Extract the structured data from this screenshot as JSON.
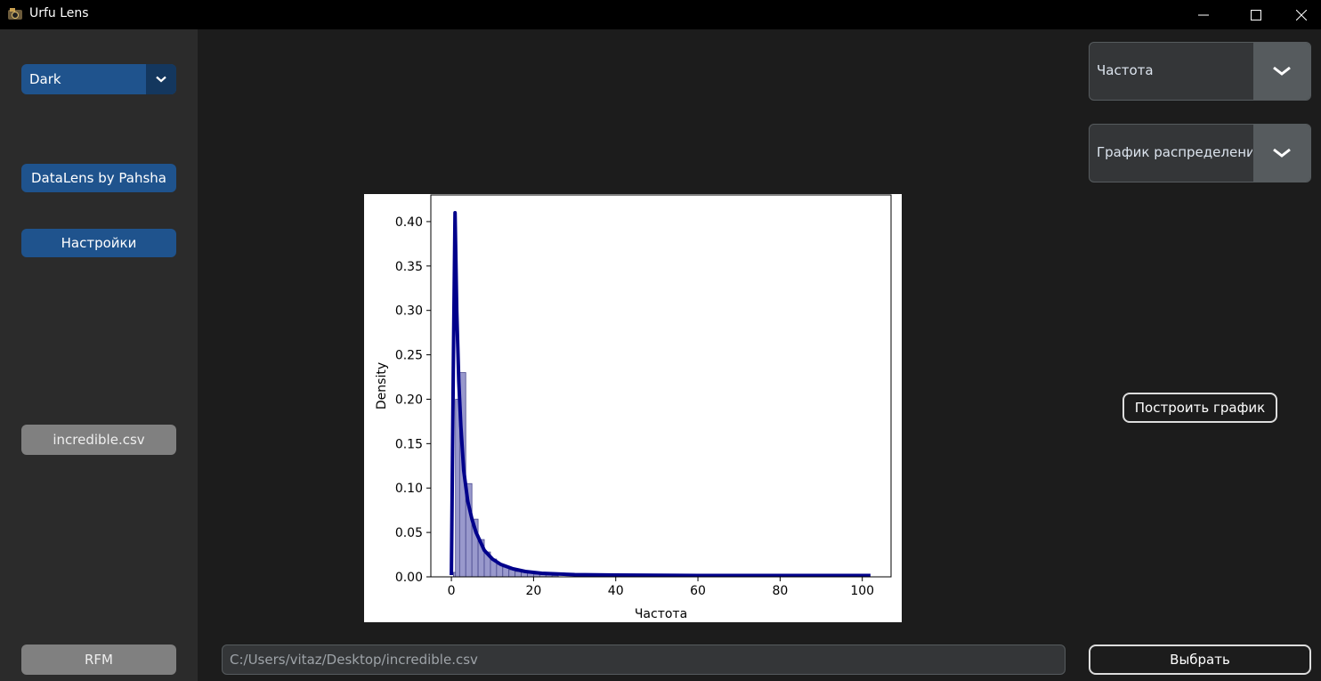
{
  "window": {
    "title": "Urfu Lens"
  },
  "sidebar": {
    "theme_value": "Dark",
    "datalens_label": "DataLens by Pahsha",
    "settings_label": "Настройки",
    "file_label": "incredible.csv",
    "rfm_label": "RFM"
  },
  "controls": {
    "column_value": "Частота",
    "plot_type_value": "График распределения",
    "build_label": "Построить график",
    "path_value": "C:/Users/vitaz/Desktop/incredible.csv",
    "choose_label": "Выбрать"
  },
  "colors": {
    "accent": "#1f538d",
    "kde_line": "#00008b",
    "hist_fill": "#9999cc"
  },
  "chart_data": {
    "type": "bar",
    "title": "",
    "xlabel": "Частота",
    "ylabel": "Density",
    "xlim": [
      -5,
      107
    ],
    "ylim": [
      0,
      0.43
    ],
    "xticks": [
      0,
      20,
      40,
      60,
      80,
      100
    ],
    "xtick_labels": [
      "0",
      "20",
      "40",
      "60",
      "80",
      "100"
    ],
    "yticks": [
      0,
      0.05,
      0.1,
      0.15,
      0.2,
      0.25,
      0.3,
      0.35,
      0.4
    ],
    "ytick_labels": [
      "0.00",
      "0.05",
      "0.10",
      "0.15",
      "0.20",
      "0.25",
      "0.30",
      "0.35",
      "0.40"
    ],
    "hist_bin_width": 1.5,
    "hist_bins": [
      [
        0.5,
        0.005
      ],
      [
        1,
        0.2
      ],
      [
        2,
        0.23
      ],
      [
        3.5,
        0.105
      ],
      [
        5,
        0.065
      ],
      [
        6.5,
        0.042
      ],
      [
        8,
        0.028
      ],
      [
        9.5,
        0.02
      ],
      [
        11,
        0.014
      ],
      [
        12.5,
        0.011
      ],
      [
        14,
        0.008
      ],
      [
        15.5,
        0.006
      ],
      [
        17,
        0.005
      ],
      [
        18.5,
        0.004
      ],
      [
        20,
        0.003
      ],
      [
        21.5,
        0.0025
      ],
      [
        23,
        0.002
      ],
      [
        24.5,
        0.0015
      ]
    ],
    "kde_line": [
      [
        0,
        0.002
      ],
      [
        0.5,
        0.25
      ],
      [
        0.9,
        0.41
      ],
      [
        1.3,
        0.3
      ],
      [
        1.8,
        0.22
      ],
      [
        2.3,
        0.17
      ],
      [
        3,
        0.12
      ],
      [
        4,
        0.085
      ],
      [
        5,
        0.065
      ],
      [
        6,
        0.05
      ],
      [
        7,
        0.04
      ],
      [
        8,
        0.03
      ],
      [
        10,
        0.02
      ],
      [
        12,
        0.014
      ],
      [
        15,
        0.009
      ],
      [
        18,
        0.006
      ],
      [
        22,
        0.004
      ],
      [
        30,
        0.0025
      ],
      [
        40,
        0.002
      ],
      [
        60,
        0.0015
      ],
      [
        80,
        0.0015
      ],
      [
        102,
        0.0015
      ]
    ]
  }
}
